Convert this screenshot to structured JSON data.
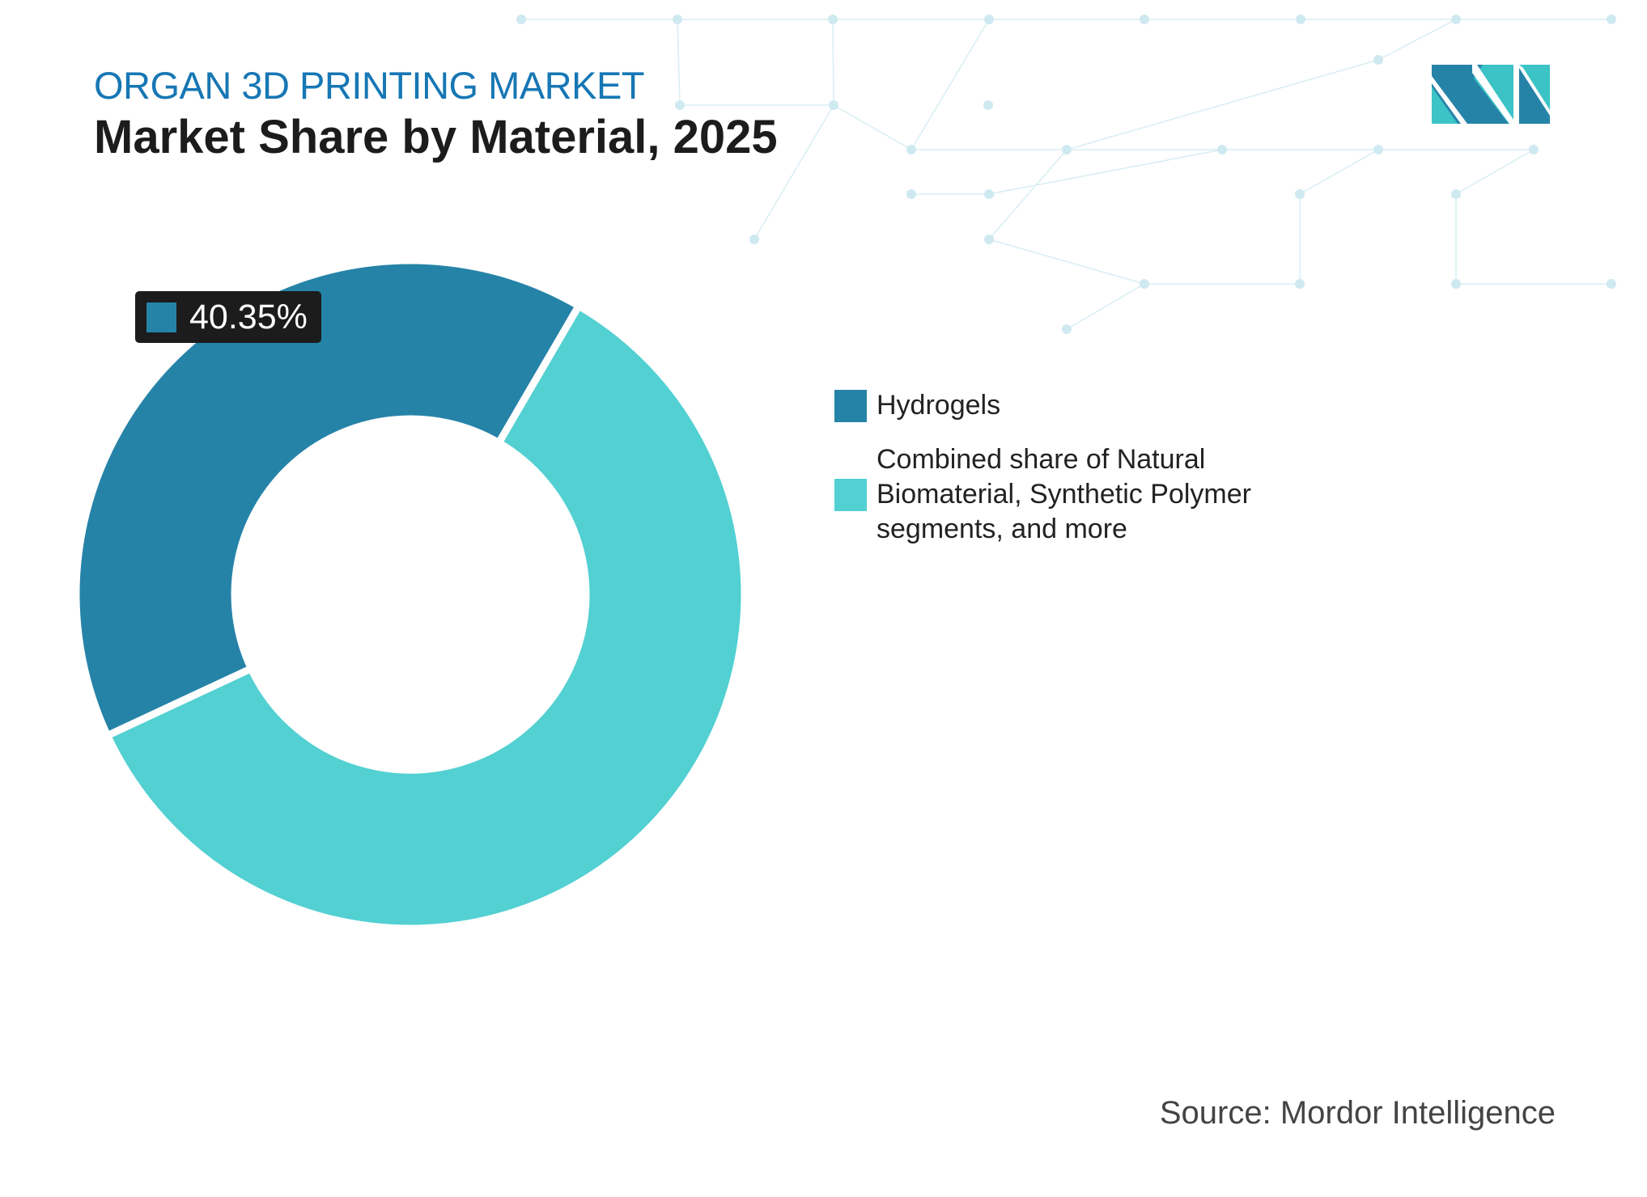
{
  "header": {
    "subtitle": "ORGAN 3D PRINTING MARKET",
    "title": "Market Share by Material, 2025"
  },
  "colors": {
    "accent": "#1777b4",
    "hydrogels": "#2683a8",
    "other": "#52d0d2",
    "callout_bg": "#1c1c1c"
  },
  "chart_data": {
    "type": "pie",
    "variant": "donut",
    "title": "Market Share by Material, 2025",
    "slices": [
      {
        "name": "Hydrogels",
        "value": 40.35,
        "color": "#2683a8",
        "label": "40.35%"
      },
      {
        "name": "Combined share of Natural Biomaterial, Synthetic Polymer segments, and more",
        "value": 59.65,
        "color": "#52d0d2"
      }
    ],
    "legend_position": "right"
  },
  "legend": {
    "items": [
      {
        "label": "Hydrogels"
      },
      {
        "label": "Combined share of Natural Biomaterial, Synthetic Polymer segments, and more"
      }
    ]
  },
  "callout": {
    "value": "40.35%"
  },
  "source": "Source: Mordor Intelligence",
  "logo": {
    "name": "Mordor Intelligence logo"
  }
}
